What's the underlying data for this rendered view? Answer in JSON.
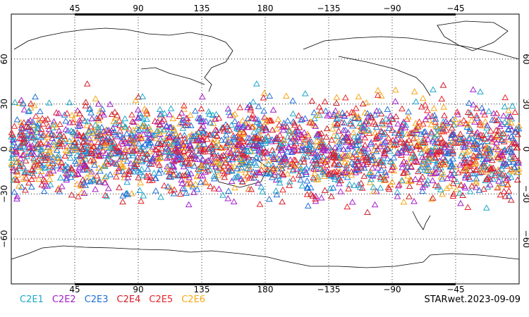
{
  "map": {
    "projection": "cylindrical equidistant",
    "lon_center": 180,
    "lon_range": [
      0,
      360
    ],
    "lat_range": [
      -90,
      90
    ],
    "grid": "dotted",
    "top_lon_labels": [
      "45",
      "90",
      "135",
      "180",
      "−135",
      "−90",
      "−45"
    ],
    "bottom_lon_labels": [
      "45",
      "90",
      "135",
      "180",
      "−135",
      "−90",
      "−45"
    ],
    "lat_labels": [
      "60",
      "30",
      "0",
      "−30",
      "−60"
    ],
    "marker": "open-triangle",
    "obs_lat_band": [
      -45,
      45
    ]
  },
  "legend": [
    {
      "label": "C2E1",
      "color": "#1fa7c9"
    },
    {
      "label": "C2E2",
      "color": "#a21fc9"
    },
    {
      "label": "C2E3",
      "color": "#1f6fd6"
    },
    {
      "label": "C2E4",
      "color": "#d01f2a"
    },
    {
      "label": "C2E5",
      "color": "#e8232a"
    },
    {
      "label": "C2E6",
      "color": "#f4a81a"
    }
  ],
  "footer": {
    "stamp": "STARwet.2023-09-09"
  }
}
